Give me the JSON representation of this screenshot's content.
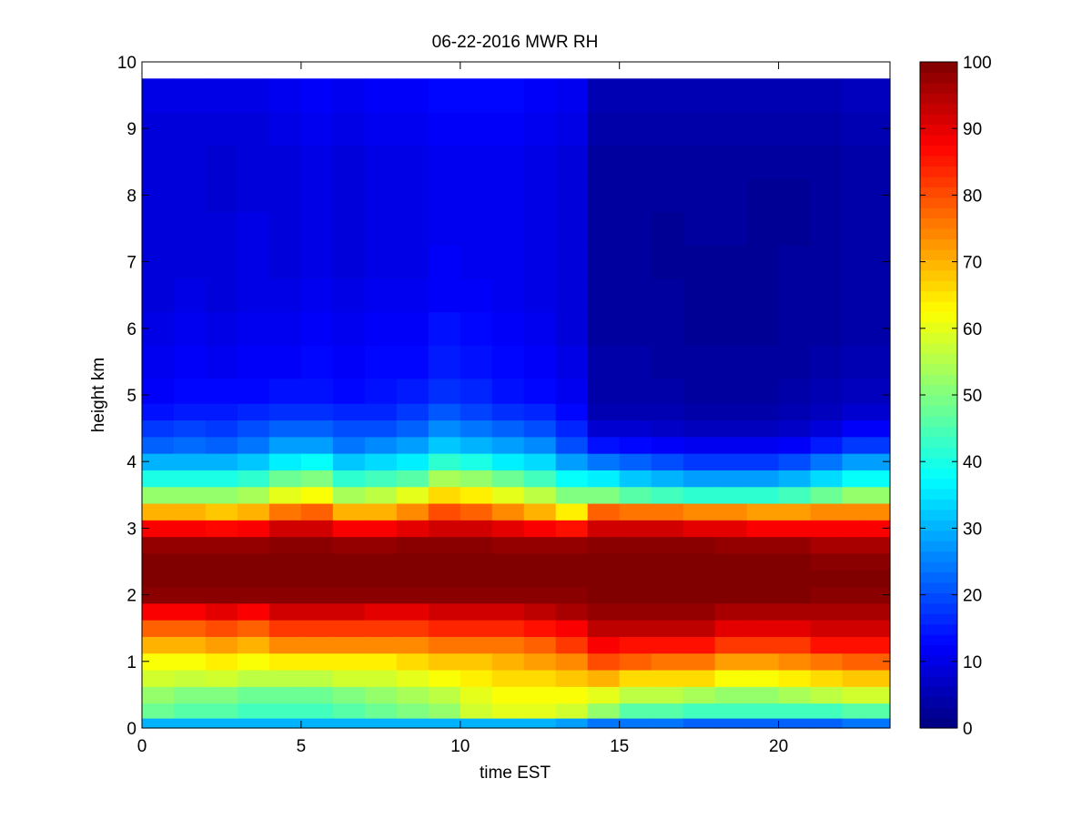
{
  "chart_data": {
    "type": "heatmap",
    "title": "06-22-2016 MWR RH",
    "xlabel": "time EST",
    "ylabel": "height km",
    "xlim": [
      0,
      23.5
    ],
    "ylim": [
      0,
      10
    ],
    "x_ticks": [
      "0",
      "5",
      "10",
      "15",
      "20"
    ],
    "y_ticks": [
      "0",
      "1",
      "2",
      "3",
      "4",
      "5",
      "6",
      "7",
      "8",
      "9",
      "10"
    ],
    "colorbar": {
      "colormap": "jet",
      "range": [
        0,
        100
      ],
      "ticks": [
        "0",
        "10",
        "20",
        "30",
        "40",
        "50",
        "60",
        "70",
        "80",
        "90",
        "100"
      ]
    },
    "grid": false,
    "x": [
      0.5,
      1.5,
      2.5,
      3.5,
      4.5,
      5.5,
      6.5,
      7.5,
      8.5,
      9.5,
      10.5,
      11.5,
      12.5,
      13.5,
      14.5,
      15.5,
      16.5,
      17.5,
      18.5,
      19.5,
      20.5,
      21.5,
      22.5,
      23.0
    ],
    "heights": [
      0.05,
      0.25,
      0.5,
      0.75,
      1.0,
      1.25,
      1.5,
      1.75,
      2.0,
      2.25,
      2.5,
      2.75,
      3.0,
      3.25,
      3.5,
      3.75,
      4.0,
      4.25,
      4.5,
      4.75,
      5.0,
      5.5,
      6.0,
      6.5,
      7.0,
      7.5,
      8.0,
      8.5,
      9.0,
      9.5
    ],
    "profiles": [
      {
        "time": 0.5,
        "rh": [
          30,
          48,
          52,
          58,
          62,
          70,
          78,
          88,
          99,
          100,
          100,
          98,
          88,
          70,
          52,
          40,
          30,
          22,
          18,
          14,
          12,
          11,
          10,
          9,
          9,
          9,
          9,
          9,
          9,
          10
        ]
      },
      {
        "time": 1.5,
        "rh": [
          30,
          46,
          50,
          57,
          62,
          70,
          78,
          88,
          99,
          100,
          100,
          98,
          88,
          70,
          52,
          40,
          30,
          23,
          19,
          15,
          13,
          12,
          11,
          10,
          9,
          9,
          9,
          9,
          9,
          10
        ]
      },
      {
        "time": 2.5,
        "rh": [
          30,
          46,
          50,
          58,
          64,
          72,
          80,
          90,
          99,
          100,
          100,
          98,
          87,
          68,
          52,
          40,
          30,
          22,
          18,
          15,
          13,
          11,
          10,
          9,
          9,
          9,
          8,
          8,
          9,
          10
        ]
      },
      {
        "time": 3.5,
        "rh": [
          30,
          44,
          48,
          56,
          62,
          70,
          78,
          88,
          99,
          100,
          100,
          98,
          88,
          70,
          54,
          42,
          32,
          24,
          20,
          16,
          13,
          12,
          11,
          10,
          10,
          10,
          9,
          9,
          9,
          10
        ]
      },
      {
        "time": 4.5,
        "rh": [
          30,
          44,
          48,
          56,
          64,
          74,
          82,
          92,
          99,
          100,
          100,
          99,
          92,
          76,
          60,
          48,
          36,
          28,
          22,
          17,
          14,
          12,
          11,
          10,
          9,
          9,
          9,
          9,
          10,
          11
        ]
      },
      {
        "time": 5.5,
        "rh": [
          30,
          44,
          48,
          56,
          64,
          74,
          82,
          92,
          99,
          100,
          100,
          99,
          92,
          78,
          62,
          50,
          38,
          28,
          22,
          17,
          14,
          13,
          12,
          11,
          10,
          10,
          10,
          10,
          11,
          12
        ]
      },
      {
        "time": 6.5,
        "rh": [
          30,
          46,
          50,
          58,
          64,
          74,
          82,
          92,
          99,
          100,
          100,
          98,
          88,
          70,
          54,
          42,
          32,
          24,
          20,
          16,
          13,
          12,
          11,
          10,
          9,
          9,
          9,
          9,
          10,
          11
        ]
      },
      {
        "time": 7.5,
        "rh": [
          30,
          48,
          52,
          58,
          64,
          74,
          82,
          90,
          99,
          100,
          100,
          98,
          88,
          70,
          56,
          44,
          34,
          26,
          20,
          16,
          14,
          13,
          12,
          11,
          10,
          10,
          10,
          10,
          11,
          12
        ]
      },
      {
        "time": 8.5,
        "rh": [
          30,
          50,
          54,
          60,
          66,
          74,
          82,
          90,
          99,
          100,
          100,
          99,
          90,
          74,
          60,
          46,
          36,
          28,
          22,
          18,
          15,
          13,
          12,
          11,
          10,
          10,
          10,
          10,
          11,
          12
        ]
      },
      {
        "time": 9.5,
        "rh": [
          30,
          52,
          56,
          62,
          68,
          76,
          84,
          92,
          99,
          100,
          100,
          99,
          92,
          80,
          66,
          54,
          42,
          32,
          26,
          21,
          17,
          15,
          14,
          12,
          12,
          11,
          11,
          11,
          12,
          13
        ]
      },
      {
        "time": 10.5,
        "rh": [
          30,
          58,
          60,
          64,
          68,
          76,
          84,
          92,
          99,
          100,
          100,
          99,
          92,
          78,
          64,
          52,
          40,
          30,
          24,
          19,
          16,
          14,
          13,
          12,
          11,
          11,
          11,
          11,
          12,
          13
        ]
      },
      {
        "time": 11.5,
        "rh": [
          30,
          60,
          62,
          66,
          70,
          76,
          84,
          92,
          99,
          100,
          100,
          98,
          90,
          74,
          60,
          48,
          36,
          28,
          22,
          17,
          14,
          13,
          12,
          11,
          11,
          11,
          11,
          11,
          12,
          13
        ]
      },
      {
        "time": 12.5,
        "rh": [
          30,
          60,
          62,
          66,
          72,
          78,
          86,
          94,
          99,
          100,
          100,
          98,
          88,
          70,
          56,
          44,
          34,
          26,
          20,
          16,
          13,
          12,
          11,
          10,
          10,
          10,
          10,
          10,
          11,
          12
        ]
      },
      {
        "time": 13.5,
        "rh": [
          28,
          58,
          62,
          68,
          74,
          82,
          88,
          96,
          99,
          100,
          100,
          98,
          86,
          64,
          50,
          38,
          28,
          20,
          16,
          13,
          11,
          10,
          9,
          9,
          9,
          9,
          9,
          9,
          10,
          11
        ]
      },
      {
        "time": 14.5,
        "rh": [
          24,
          52,
          60,
          70,
          80,
          88,
          94,
          98,
          100,
          100,
          100,
          99,
          92,
          78,
          50,
          36,
          24,
          14,
          8,
          5,
          4,
          4,
          3,
          3,
          3,
          3,
          3,
          3,
          4,
          5
        ]
      },
      {
        "time": 15.5,
        "rh": [
          24,
          46,
          56,
          66,
          78,
          86,
          94,
          98,
          100,
          100,
          100,
          99,
          92,
          76,
          46,
          32,
          22,
          13,
          8,
          5,
          4,
          4,
          3,
          3,
          3,
          3,
          3,
          3,
          4,
          5
        ]
      },
      {
        "time": 16.5,
        "rh": [
          24,
          46,
          56,
          66,
          76,
          86,
          94,
          98,
          100,
          100,
          100,
          99,
          92,
          76,
          44,
          30,
          20,
          12,
          7,
          5,
          4,
          3,
          3,
          3,
          2,
          2,
          3,
          3,
          4,
          5
        ]
      },
      {
        "time": 17.5,
        "rh": [
          22,
          44,
          54,
          66,
          76,
          86,
          94,
          98,
          100,
          100,
          100,
          99,
          90,
          74,
          42,
          28,
          18,
          11,
          6,
          4,
          3,
          3,
          2,
          2,
          2,
          3,
          3,
          3,
          4,
          5
        ]
      },
      {
        "time": 18.5,
        "rh": [
          22,
          44,
          52,
          62,
          72,
          82,
          90,
          96,
          100,
          100,
          100,
          98,
          90,
          74,
          42,
          28,
          18,
          11,
          6,
          4,
          3,
          3,
          2,
          2,
          2,
          3,
          3,
          3,
          4,
          5
        ]
      },
      {
        "time": 19.5,
        "rh": [
          22,
          44,
          52,
          62,
          72,
          82,
          90,
          96,
          100,
          100,
          100,
          98,
          88,
          72,
          42,
          28,
          18,
          11,
          6,
          4,
          3,
          3,
          2,
          2,
          2,
          2,
          2,
          3,
          4,
          5
        ]
      },
      {
        "time": 20.5,
        "rh": [
          22,
          44,
          54,
          64,
          74,
          82,
          90,
          96,
          100,
          100,
          100,
          98,
          88,
          72,
          44,
          30,
          20,
          12,
          7,
          5,
          4,
          3,
          3,
          3,
          3,
          2,
          2,
          3,
          4,
          5
        ]
      },
      {
        "time": 21.5,
        "rh": [
          22,
          44,
          56,
          66,
          76,
          86,
          92,
          96,
          99,
          100,
          99,
          96,
          88,
          74,
          48,
          34,
          24,
          15,
          9,
          6,
          5,
          4,
          3,
          3,
          3,
          3,
          3,
          3,
          4,
          5
        ]
      },
      {
        "time": 22.5,
        "rh": [
          24,
          46,
          58,
          68,
          78,
          86,
          92,
          96,
          99,
          100,
          99,
          96,
          88,
          74,
          52,
          38,
          28,
          18,
          12,
          8,
          6,
          5,
          4,
          4,
          4,
          4,
          4,
          4,
          5,
          6
        ]
      },
      {
        "time": 23.0,
        "rh": [
          24,
          46,
          58,
          68,
          78,
          86,
          92,
          96,
          99,
          100,
          99,
          96,
          88,
          74,
          52,
          38,
          28,
          18,
          12,
          8,
          6,
          5,
          4,
          4,
          4,
          4,
          4,
          4,
          5,
          6
        ]
      }
    ]
  }
}
